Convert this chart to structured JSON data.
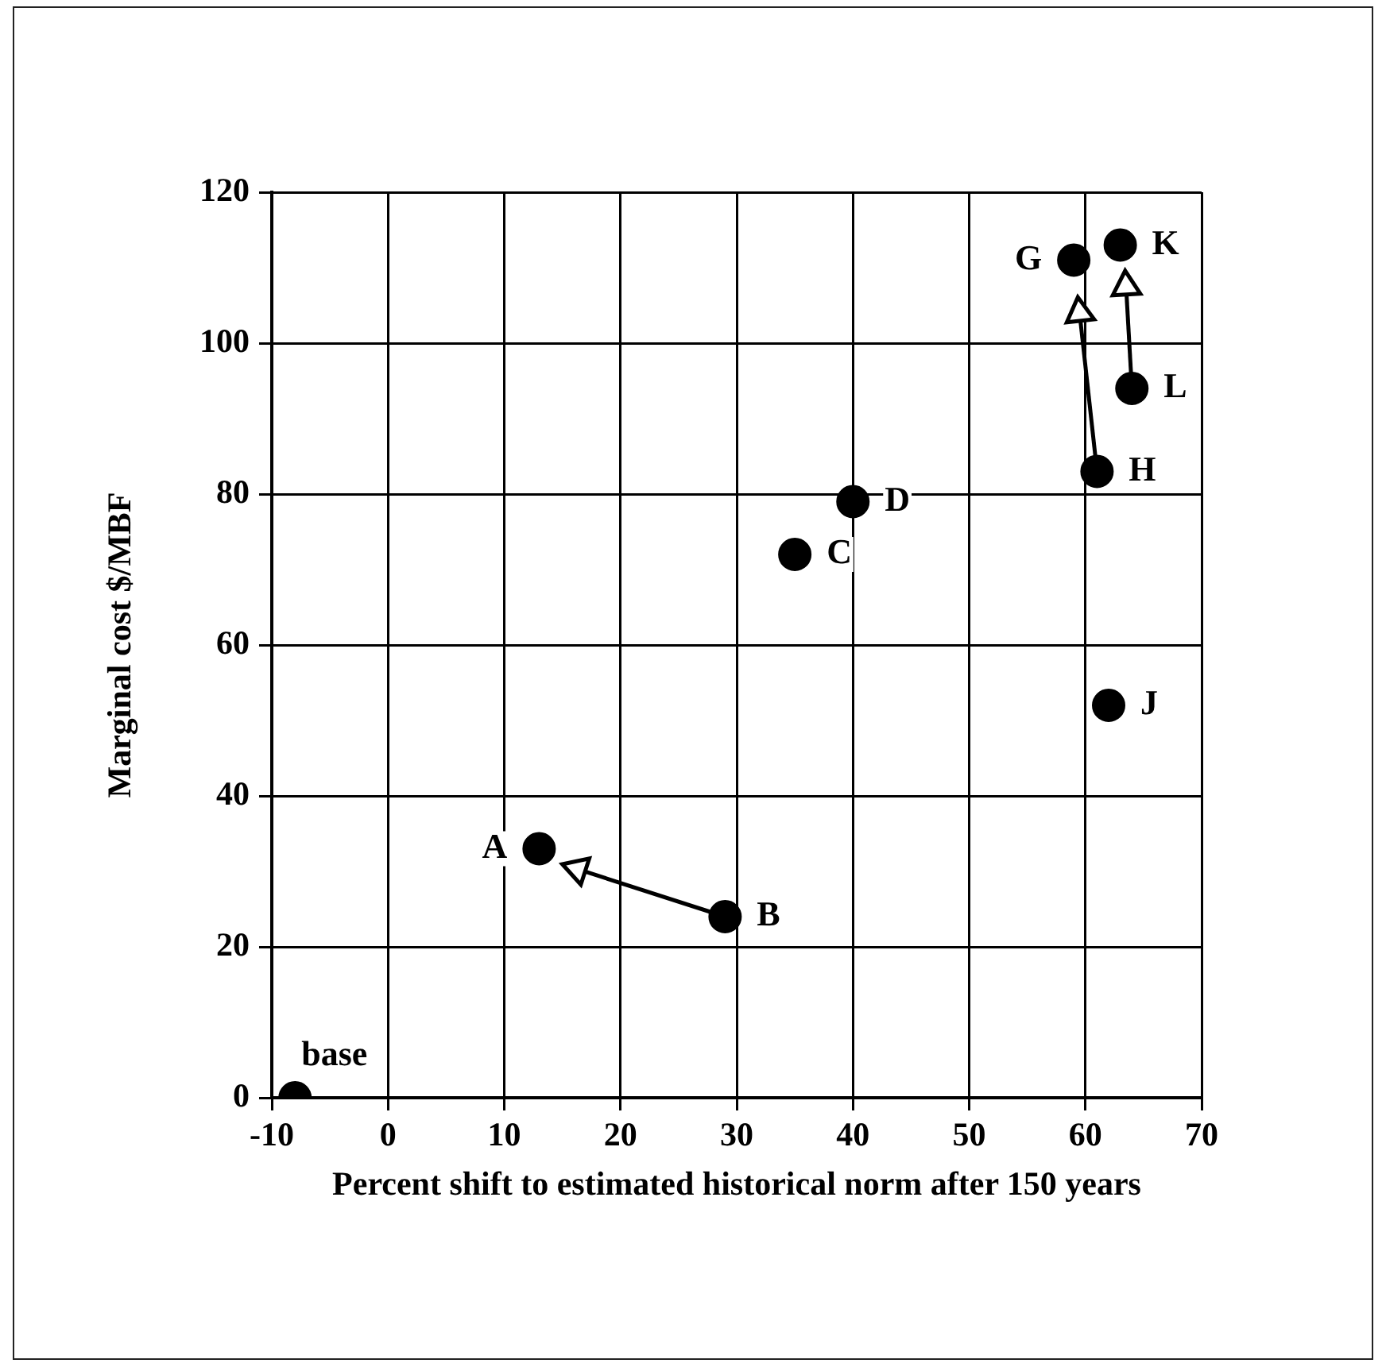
{
  "chart_data": {
    "type": "scatter",
    "xlabel": "Percent shift to estimated historical norm after 150 years",
    "ylabel": "Marginal cost $/MBF",
    "xlim": [
      -10,
      70
    ],
    "xticks": [
      -10,
      0,
      10,
      20,
      30,
      40,
      50,
      60,
      70
    ],
    "ylim": [
      0,
      120
    ],
    "yticks": [
      0,
      20,
      40,
      60,
      80,
      100,
      120
    ],
    "grid": true,
    "series": [
      {
        "type": "scatter",
        "marker": "circle",
        "color": "#000000",
        "x": [
          -8,
          13,
          29,
          35,
          40,
          59,
          61,
          62,
          63,
          64
        ],
        "values": [
          0,
          33,
          24,
          72,
          79,
          111,
          83,
          52,
          113,
          94
        ]
      },
      {
        "type": "line",
        "marker": "triangle",
        "color": "#000000",
        "x": [
          29,
          16.3
        ],
        "values": [
          24,
          30.3
        ]
      },
      {
        "type": "line",
        "marker": "triangle",
        "color": "#000000",
        "x": [
          61,
          59.5
        ],
        "values": [
          83,
          104
        ]
      },
      {
        "type": "line",
        "marker": "triangle",
        "color": "#000000",
        "x": [
          64,
          63.5
        ],
        "values": [
          94,
          107.5
        ]
      }
    ],
    "annotations": [
      {
        "text": "base",
        "x": -8,
        "y": 0
      },
      {
        "text": "A",
        "x": 13,
        "y": 33
      },
      {
        "text": "B",
        "x": 29,
        "y": 24
      },
      {
        "text": "C",
        "x": 35,
        "y": 72
      },
      {
        "text": "D",
        "x": 40,
        "y": 79
      },
      {
        "text": "G",
        "x": 59,
        "y": 111
      },
      {
        "text": "H",
        "x": 61,
        "y": 83
      },
      {
        "text": "J",
        "x": 62,
        "y": 52
      },
      {
        "text": "K",
        "x": 63,
        "y": 113
      },
      {
        "text": "L",
        "x": 64,
        "y": 94
      }
    ]
  }
}
